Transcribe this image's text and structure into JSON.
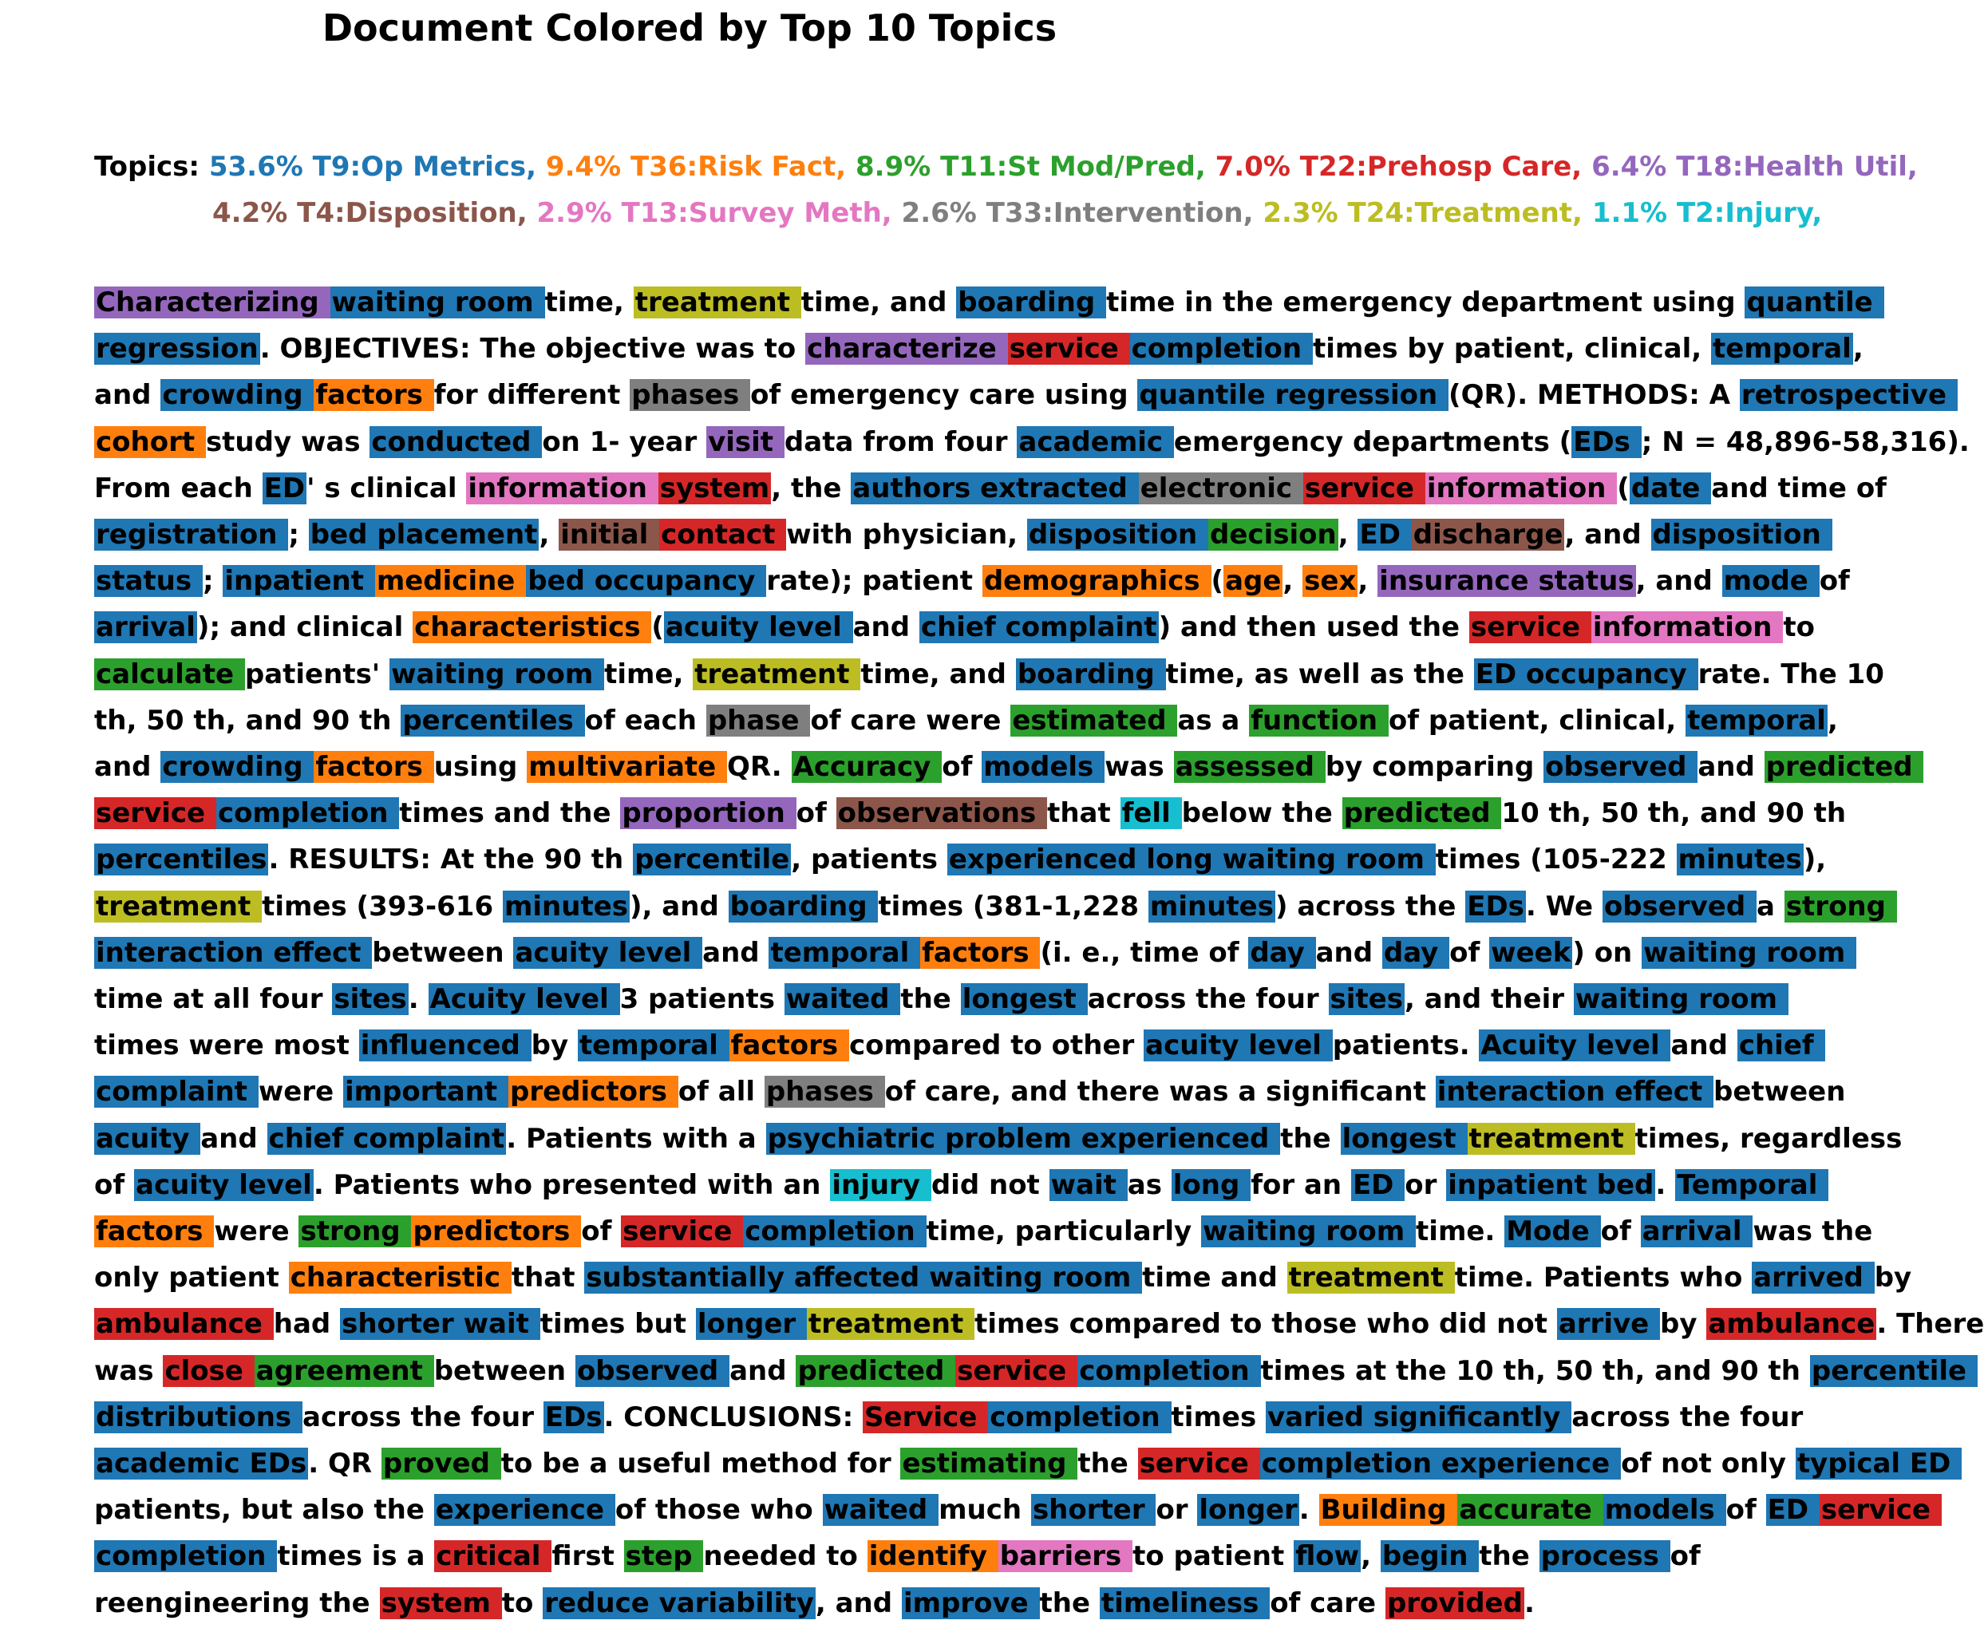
{
  "title": "Document Colored by Top 10 Topics",
  "topics_prefix": "Topics:",
  "topics": [
    {
      "label": "53.6% T9:Op Metrics,",
      "color": "#1f77b4"
    },
    {
      "label": "9.4% T36:Risk Fact,",
      "color": "#ff7f0e"
    },
    {
      "label": "8.9% T11:St Mod/Pred,",
      "color": "#2ca02c"
    },
    {
      "label": "7.0% T22:Prehosp Care,",
      "color": "#d62728"
    },
    {
      "label": "6.4% T18:Health Util,",
      "color": "#9467bd"
    },
    {
      "label": "4.2% T4:Disposition,",
      "color": "#8c564b"
    },
    {
      "label": "2.9% T13:Survey Meth,",
      "color": "#e377c2"
    },
    {
      "label": "2.6% T33:Intervention,",
      "color": "#7f7f7f"
    },
    {
      "label": "2.3% T24:Treatment,",
      "color": "#bcbd22"
    },
    {
      "label": "1.1% T2:Injury,",
      "color": "#17becf"
    }
  ],
  "document_lines": [
    [
      [
        "Characterizing ",
        "T18"
      ],
      [
        "waiting room ",
        "T9"
      ],
      [
        "time, ",
        null
      ],
      [
        "treatment ",
        "T24"
      ],
      [
        "time, and ",
        null
      ],
      [
        "boarding ",
        "T9"
      ],
      [
        "time in the emergency department using ",
        null
      ],
      [
        "quantile ",
        "T9"
      ]
    ],
    [
      [
        "regression",
        "T9"
      ],
      [
        ". OBJECTIVES: The objective was to ",
        null
      ],
      [
        "characterize ",
        "T18"
      ],
      [
        "service ",
        "T22"
      ],
      [
        "completion ",
        "T9"
      ],
      [
        "times by patient, clinical, ",
        null
      ],
      [
        "temporal",
        "T9"
      ],
      [
        ",",
        null
      ]
    ],
    [
      [
        "and ",
        null
      ],
      [
        "crowding ",
        "T9"
      ],
      [
        "factors ",
        "T36"
      ],
      [
        "for different ",
        null
      ],
      [
        "phases ",
        "T33"
      ],
      [
        "of emergency care using ",
        null
      ],
      [
        "quantile regression ",
        "T9"
      ],
      [
        "(QR). METHODS: A ",
        null
      ],
      [
        "retrospective ",
        "T9"
      ]
    ],
    [
      [
        "cohort ",
        "T36"
      ],
      [
        "study was ",
        null
      ],
      [
        "conducted ",
        "T9"
      ],
      [
        "on 1- year ",
        null
      ],
      [
        "visit ",
        "T18"
      ],
      [
        "data from four ",
        null
      ],
      [
        "academic ",
        "T9"
      ],
      [
        "emergency departments (",
        null
      ],
      [
        "EDs ",
        "T9"
      ],
      [
        "; N = 48,896-58,316).",
        null
      ]
    ],
    [
      [
        "From each ",
        null
      ],
      [
        "ED",
        "T9"
      ],
      [
        "' s clinical ",
        null
      ],
      [
        "information ",
        "T13"
      ],
      [
        "system",
        "T22"
      ],
      [
        ", the ",
        null
      ],
      [
        "authors extracted ",
        "T9"
      ],
      [
        "electronic ",
        "T33"
      ],
      [
        "service ",
        "T22"
      ],
      [
        "information ",
        "T13"
      ],
      [
        "(",
        null
      ],
      [
        "date ",
        "T9"
      ],
      [
        "and time of",
        null
      ]
    ],
    [
      [
        "registration ",
        "T9"
      ],
      [
        "; ",
        null
      ],
      [
        "bed placement",
        "T9"
      ],
      [
        ", ",
        null
      ],
      [
        "initial ",
        "T4"
      ],
      [
        "contact ",
        "T22"
      ],
      [
        "with physician, ",
        null
      ],
      [
        "disposition ",
        "T9"
      ],
      [
        "decision",
        "T11"
      ],
      [
        ", ",
        null
      ],
      [
        "ED ",
        "T9"
      ],
      [
        "discharge",
        "T4"
      ],
      [
        ", and ",
        null
      ],
      [
        "disposition ",
        "T9"
      ]
    ],
    [
      [
        "status ",
        "T9"
      ],
      [
        "; ",
        null
      ],
      [
        "inpatient ",
        "T9"
      ],
      [
        "medicine ",
        "T36"
      ],
      [
        "bed occupancy ",
        "T9"
      ],
      [
        "rate); patient ",
        null
      ],
      [
        "demographics ",
        "T36"
      ],
      [
        "(",
        null
      ],
      [
        "age",
        "T36"
      ],
      [
        ", ",
        null
      ],
      [
        "sex",
        "T36"
      ],
      [
        ", ",
        null
      ],
      [
        "insurance status",
        "T18"
      ],
      [
        ", and ",
        null
      ],
      [
        "mode ",
        "T9"
      ],
      [
        "of",
        null
      ]
    ],
    [
      [
        "arrival",
        "T9"
      ],
      [
        "); and clinical ",
        null
      ],
      [
        "characteristics ",
        "T36"
      ],
      [
        "(",
        null
      ],
      [
        "acuity level ",
        "T9"
      ],
      [
        "and ",
        null
      ],
      [
        "chief complaint",
        "T9"
      ],
      [
        ") and then used the ",
        null
      ],
      [
        "service ",
        "T22"
      ],
      [
        "information ",
        "T13"
      ],
      [
        "to",
        null
      ]
    ],
    [
      [
        "calculate ",
        "T11"
      ],
      [
        "patients' ",
        null
      ],
      [
        "waiting room ",
        "T9"
      ],
      [
        "time, ",
        null
      ],
      [
        "treatment ",
        "T24"
      ],
      [
        "time, and ",
        null
      ],
      [
        "boarding ",
        "T9"
      ],
      [
        "time, as well as the ",
        null
      ],
      [
        "ED occupancy ",
        "T9"
      ],
      [
        "rate. The 10",
        null
      ]
    ],
    [
      [
        "th, 50 th, and 90 th ",
        null
      ],
      [
        "percentiles ",
        "T9"
      ],
      [
        "of each ",
        null
      ],
      [
        "phase ",
        "T33"
      ],
      [
        "of care were ",
        null
      ],
      [
        "estimated ",
        "T11"
      ],
      [
        "as a ",
        null
      ],
      [
        "function ",
        "T11"
      ],
      [
        "of patient, clinical, ",
        null
      ],
      [
        "temporal",
        "T9"
      ],
      [
        ",",
        null
      ]
    ],
    [
      [
        "and ",
        null
      ],
      [
        "crowding ",
        "T9"
      ],
      [
        "factors ",
        "T36"
      ],
      [
        "using ",
        null
      ],
      [
        "multivariate ",
        "T36"
      ],
      [
        "QR. ",
        null
      ],
      [
        "Accuracy ",
        "T11"
      ],
      [
        "of ",
        null
      ],
      [
        "models ",
        "T9"
      ],
      [
        "was ",
        null
      ],
      [
        "assessed ",
        "T11"
      ],
      [
        "by comparing ",
        null
      ],
      [
        "observed ",
        "T9"
      ],
      [
        "and ",
        null
      ],
      [
        "predicted ",
        "T11"
      ]
    ],
    [
      [
        "service ",
        "T22"
      ],
      [
        "completion ",
        "T9"
      ],
      [
        "times and the ",
        null
      ],
      [
        "proportion ",
        "T18"
      ],
      [
        "of ",
        null
      ],
      [
        "observations ",
        "T4"
      ],
      [
        "that ",
        null
      ],
      [
        "fell ",
        "T2"
      ],
      [
        "below the ",
        null
      ],
      [
        "predicted ",
        "T11"
      ],
      [
        "10 th, 50 th, and 90 th",
        null
      ]
    ],
    [
      [
        "percentiles",
        "T9"
      ],
      [
        ". RESULTS: At the 90 th ",
        null
      ],
      [
        "percentile",
        "T9"
      ],
      [
        ", patients ",
        null
      ],
      [
        "experienced long waiting room ",
        "T9"
      ],
      [
        "times (105-222 ",
        null
      ],
      [
        "minutes",
        "T9"
      ],
      [
        "),",
        null
      ]
    ],
    [
      [
        "treatment ",
        "T24"
      ],
      [
        "times (393-616 ",
        null
      ],
      [
        "minutes",
        "T9"
      ],
      [
        "), and ",
        null
      ],
      [
        "boarding ",
        "T9"
      ],
      [
        "times (381-1,228 ",
        null
      ],
      [
        "minutes",
        "T9"
      ],
      [
        ") across the ",
        null
      ],
      [
        "EDs",
        "T9"
      ],
      [
        ". We ",
        null
      ],
      [
        "observed ",
        "T9"
      ],
      [
        "a ",
        null
      ],
      [
        "strong ",
        "T11"
      ]
    ],
    [
      [
        "interaction effect ",
        "T9"
      ],
      [
        "between ",
        null
      ],
      [
        "acuity level ",
        "T9"
      ],
      [
        "and ",
        null
      ],
      [
        "temporal ",
        "T9"
      ],
      [
        "factors ",
        "T36"
      ],
      [
        "(i. e., time of ",
        null
      ],
      [
        "day ",
        "T9"
      ],
      [
        "and ",
        null
      ],
      [
        "day ",
        "T9"
      ],
      [
        "of ",
        null
      ],
      [
        "week",
        "T9"
      ],
      [
        ") on ",
        null
      ],
      [
        "waiting room ",
        "T9"
      ]
    ],
    [
      [
        "time at all four ",
        null
      ],
      [
        "sites",
        "T9"
      ],
      [
        ". ",
        null
      ],
      [
        "Acuity level ",
        "T9"
      ],
      [
        "3 patients ",
        null
      ],
      [
        "waited ",
        "T9"
      ],
      [
        "the ",
        null
      ],
      [
        "longest ",
        "T9"
      ],
      [
        "across the four ",
        null
      ],
      [
        "sites",
        "T9"
      ],
      [
        ", and their ",
        null
      ],
      [
        "waiting room ",
        "T9"
      ]
    ],
    [
      [
        "times were most ",
        null
      ],
      [
        "influenced ",
        "T9"
      ],
      [
        "by ",
        null
      ],
      [
        "temporal ",
        "T9"
      ],
      [
        "factors ",
        "T36"
      ],
      [
        "compared to other ",
        null
      ],
      [
        "acuity level ",
        "T9"
      ],
      [
        "patients. ",
        null
      ],
      [
        "Acuity level ",
        "T9"
      ],
      [
        "and ",
        null
      ],
      [
        "chief ",
        "T9"
      ]
    ],
    [
      [
        "complaint ",
        "T9"
      ],
      [
        "were ",
        null
      ],
      [
        "important ",
        "T9"
      ],
      [
        "predictors ",
        "T36"
      ],
      [
        "of all ",
        null
      ],
      [
        "phases ",
        "T33"
      ],
      [
        "of care, and there was a significant ",
        null
      ],
      [
        "interaction effect ",
        "T9"
      ],
      [
        "between",
        null
      ]
    ],
    [
      [
        "acuity ",
        "T9"
      ],
      [
        "and ",
        null
      ],
      [
        "chief complaint",
        "T9"
      ],
      [
        ". Patients with a ",
        null
      ],
      [
        "psychiatric problem experienced ",
        "T9"
      ],
      [
        "the ",
        null
      ],
      [
        "longest ",
        "T9"
      ],
      [
        "treatment ",
        "T24"
      ],
      [
        "times, regardless",
        null
      ]
    ],
    [
      [
        "of ",
        null
      ],
      [
        "acuity level",
        "T9"
      ],
      [
        ". Patients who presented with an ",
        null
      ],
      [
        "injury ",
        "T2"
      ],
      [
        "did not ",
        null
      ],
      [
        "wait ",
        "T9"
      ],
      [
        "as ",
        null
      ],
      [
        "long ",
        "T9"
      ],
      [
        "for an ",
        null
      ],
      [
        "ED ",
        "T9"
      ],
      [
        "or ",
        null
      ],
      [
        "inpatient bed",
        "T9"
      ],
      [
        ". ",
        null
      ],
      [
        "Temporal ",
        "T9"
      ]
    ],
    [
      [
        "factors ",
        "T36"
      ],
      [
        "were ",
        null
      ],
      [
        "strong ",
        "T11"
      ],
      [
        "predictors ",
        "T36"
      ],
      [
        "of ",
        null
      ],
      [
        "service ",
        "T22"
      ],
      [
        "completion ",
        "T9"
      ],
      [
        "time, particularly ",
        null
      ],
      [
        "waiting room ",
        "T9"
      ],
      [
        "time. ",
        null
      ],
      [
        "Mode ",
        "T9"
      ],
      [
        "of ",
        null
      ],
      [
        "arrival ",
        "T9"
      ],
      [
        "was the",
        null
      ]
    ],
    [
      [
        "only patient ",
        null
      ],
      [
        "characteristic ",
        "T36"
      ],
      [
        "that ",
        null
      ],
      [
        "substantially affected waiting room ",
        "T9"
      ],
      [
        "time and ",
        null
      ],
      [
        "treatment ",
        "T24"
      ],
      [
        "time. Patients who ",
        null
      ],
      [
        "arrived ",
        "T9"
      ],
      [
        "by",
        null
      ]
    ],
    [
      [
        "ambulance ",
        "T22"
      ],
      [
        "had ",
        null
      ],
      [
        "shorter wait ",
        "T9"
      ],
      [
        "times but ",
        null
      ],
      [
        "longer ",
        "T9"
      ],
      [
        "treatment ",
        "T24"
      ],
      [
        "times compared to those who did not ",
        null
      ],
      [
        "arrive ",
        "T9"
      ],
      [
        "by ",
        null
      ],
      [
        "ambulance",
        "T22"
      ],
      [
        ". There",
        null
      ]
    ],
    [
      [
        "was ",
        null
      ],
      [
        "close ",
        "T22"
      ],
      [
        "agreement ",
        "T11"
      ],
      [
        "between ",
        null
      ],
      [
        "observed ",
        "T9"
      ],
      [
        "and ",
        null
      ],
      [
        "predicted ",
        "T11"
      ],
      [
        "service ",
        "T22"
      ],
      [
        "completion ",
        "T9"
      ],
      [
        "times at the 10 th, 50 th, and 90 th ",
        null
      ],
      [
        "percentile ",
        "T9"
      ]
    ],
    [
      [
        "distributions ",
        "T9"
      ],
      [
        "across the four ",
        null
      ],
      [
        "EDs",
        "T9"
      ],
      [
        ". CONCLUSIONS: ",
        null
      ],
      [
        "Service ",
        "T22"
      ],
      [
        "completion ",
        "T9"
      ],
      [
        "times ",
        null
      ],
      [
        "varied significantly ",
        "T9"
      ],
      [
        "across the four",
        null
      ]
    ],
    [
      [
        "academic EDs",
        "T9"
      ],
      [
        ". QR ",
        null
      ],
      [
        "proved ",
        "T11"
      ],
      [
        "to be a useful method for ",
        null
      ],
      [
        "estimating ",
        "T11"
      ],
      [
        "the ",
        null
      ],
      [
        "service ",
        "T22"
      ],
      [
        "completion experience ",
        "T9"
      ],
      [
        "of not only ",
        null
      ],
      [
        "typical ED ",
        "T9"
      ]
    ],
    [
      [
        "patients, but also the ",
        null
      ],
      [
        "experience ",
        "T9"
      ],
      [
        "of those who ",
        null
      ],
      [
        "waited ",
        "T9"
      ],
      [
        "much ",
        null
      ],
      [
        "shorter ",
        "T9"
      ],
      [
        "or ",
        null
      ],
      [
        "longer",
        "T9"
      ],
      [
        ". ",
        null
      ],
      [
        "Building ",
        "T36"
      ],
      [
        "accurate ",
        "T11"
      ],
      [
        "models ",
        "T9"
      ],
      [
        "of ",
        null
      ],
      [
        "ED ",
        "T9"
      ],
      [
        "service ",
        "T22"
      ]
    ],
    [
      [
        "completion ",
        "T9"
      ],
      [
        "times is a ",
        null
      ],
      [
        "critical ",
        "T22"
      ],
      [
        "first ",
        null
      ],
      [
        "step ",
        "T11"
      ],
      [
        "needed to ",
        null
      ],
      [
        "identify ",
        "T36"
      ],
      [
        "barriers ",
        "T13"
      ],
      [
        "to patient ",
        null
      ],
      [
        "flow",
        "T9"
      ],
      [
        ", ",
        null
      ],
      [
        "begin ",
        "T9"
      ],
      [
        "the ",
        null
      ],
      [
        "process ",
        "T9"
      ],
      [
        "of",
        null
      ]
    ],
    [
      [
        "reengineering the ",
        null
      ],
      [
        "system ",
        "T22"
      ],
      [
        "to ",
        null
      ],
      [
        "reduce variability",
        "T9"
      ],
      [
        ", and ",
        null
      ],
      [
        "improve ",
        "T9"
      ],
      [
        "the ",
        null
      ],
      [
        "timeliness ",
        "T9"
      ],
      [
        "of care ",
        null
      ],
      [
        "provided",
        "T22"
      ],
      [
        ".",
        null
      ]
    ]
  ],
  "topic_colors": {
    "T9": "#1f77b4",
    "T36": "#ff7f0e",
    "T11": "#2ca02c",
    "T22": "#d62728",
    "T18": "#9467bd",
    "T4": "#8c564b",
    "T13": "#e377c2",
    "T33": "#7f7f7f",
    "T24": "#bcbd22",
    "T2": "#17becf"
  }
}
